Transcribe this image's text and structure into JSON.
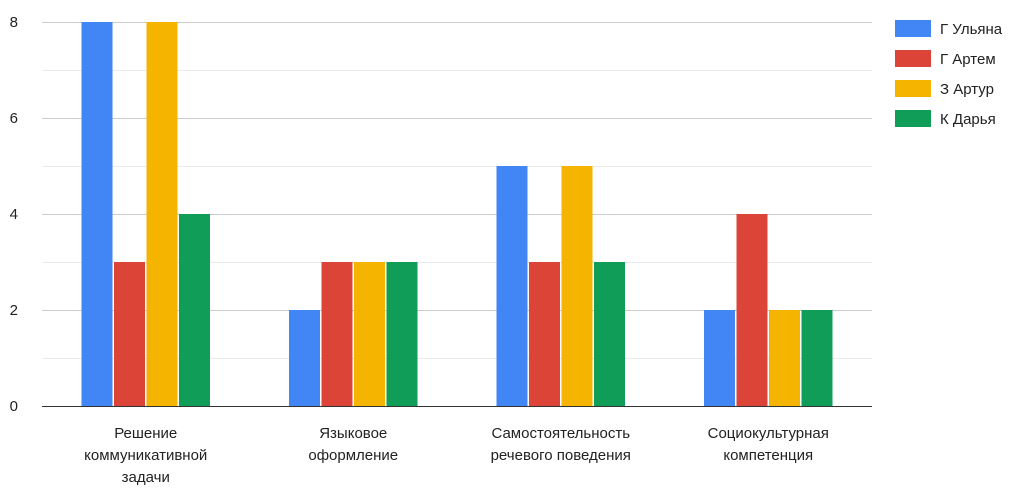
{
  "chart_data": {
    "type": "bar",
    "title": "",
    "xlabel": "",
    "ylabel": "",
    "ylim": [
      0,
      8
    ],
    "yticks": [
      0,
      2,
      4,
      6,
      8
    ],
    "grid": true,
    "minor_grid": true,
    "legend_position": "right",
    "categories": [
      [
        "Решение",
        "коммуникативной",
        "задачи"
      ],
      [
        "Языковое",
        "оформление"
      ],
      [
        "Самостоятельность",
        "речевого поведения"
      ],
      [
        "Социокультурная",
        "компетенция"
      ]
    ],
    "series": [
      {
        "name": "Г Ульяна",
        "color": "#4285f4",
        "values": [
          8,
          2,
          5,
          2
        ]
      },
      {
        "name": "Г Артем",
        "color": "#db4437",
        "values": [
          3,
          3,
          3,
          4
        ]
      },
      {
        "name": "З Артур",
        "color": "#f4b400",
        "values": [
          8,
          3,
          5,
          2
        ]
      },
      {
        "name": "К Дарья",
        "color": "#0f9d58",
        "values": [
          4,
          3,
          3,
          2
        ]
      }
    ]
  }
}
